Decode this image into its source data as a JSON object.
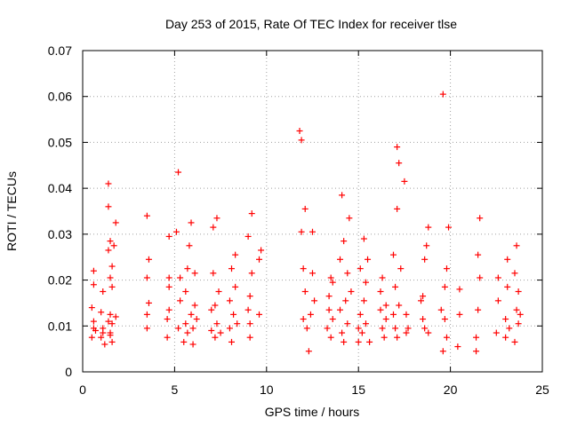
{
  "chart_data": {
    "type": "scatter",
    "title": "Day 253 of 2015, Rate Of TEC Index for receiver tlse",
    "xlabel": "GPS time / hours",
    "ylabel": "ROTI / TECUs",
    "xlim": [
      0,
      25
    ],
    "ylim": [
      0,
      0.07
    ],
    "x_ticks": [
      0,
      5,
      10,
      15,
      20,
      25
    ],
    "y_ticks": [
      0,
      0.01,
      0.02,
      0.03,
      0.04,
      0.05,
      0.06,
      0.07
    ],
    "x_tick_labels": [
      "0",
      "5",
      "10",
      "15",
      "20",
      "25"
    ],
    "y_tick_labels": [
      "0",
      "0.01",
      "0.02",
      "0.03",
      "0.04",
      "0.05",
      "0.06",
      "0.07"
    ],
    "grid": true,
    "marker": "+",
    "color": "#ff0000",
    "series": [
      {
        "name": "ROTI",
        "x": [
          0.5,
          0.5,
          0.6,
          0.6,
          0.6,
          0.6,
          0.7,
          1.0,
          1.0,
          1.1,
          1.1,
          1.1,
          1.2,
          1.4,
          1.4,
          1.4,
          1.4,
          1.5,
          1.5,
          1.5,
          1.5,
          1.5,
          1.6,
          1.6,
          1.6,
          1.6,
          1.7,
          1.8,
          1.8,
          3.5,
          3.5,
          3.5,
          3.5,
          3.6,
          3.6,
          4.6,
          4.6,
          4.7,
          4.7,
          4.7,
          4.7,
          5.1,
          5.2,
          5.2,
          5.3,
          5.3,
          5.5,
          5.6,
          5.6,
          5.7,
          5.7,
          5.8,
          5.9,
          5.9,
          6.0,
          6.0,
          6.1,
          6.1,
          6.2,
          7.0,
          7.0,
          7.1,
          7.1,
          7.2,
          7.2,
          7.3,
          7.3,
          7.4,
          7.5,
          8.0,
          8.0,
          8.1,
          8.1,
          8.2,
          8.3,
          8.3,
          8.4,
          9.0,
          9.0,
          9.1,
          9.1,
          9.1,
          9.2,
          9.2,
          9.6,
          9.6,
          9.7,
          11.8,
          11.9,
          11.9,
          12.0,
          12.0,
          12.1,
          12.1,
          12.2,
          12.3,
          12.4,
          12.5,
          12.5,
          12.6,
          13.3,
          13.4,
          13.4,
          13.5,
          13.5,
          13.6,
          13.6,
          14.0,
          14.0,
          14.1,
          14.1,
          14.2,
          14.2,
          14.3,
          14.4,
          14.4,
          14.5,
          14.6,
          15.0,
          15.0,
          15.1,
          15.1,
          15.2,
          15.3,
          15.3,
          15.4,
          15.4,
          15.5,
          15.6,
          16.2,
          16.2,
          16.3,
          16.3,
          16.4,
          16.5,
          16.5,
          16.9,
          16.9,
          17.0,
          17.0,
          17.1,
          17.1,
          17.1,
          17.2,
          17.2,
          17.3,
          17.5,
          17.6,
          17.6,
          17.7,
          18.4,
          18.5,
          18.5,
          18.6,
          18.6,
          18.7,
          18.8,
          18.8,
          19.5,
          19.6,
          19.6,
          19.7,
          19.7,
          19.8,
          19.8,
          19.9,
          20.4,
          20.5,
          20.5,
          21.4,
          21.4,
          21.5,
          21.5,
          21.6,
          21.6,
          22.5,
          22.6,
          22.6,
          23.0,
          23.0,
          23.1,
          23.1,
          23.2,
          23.5,
          23.5,
          23.6,
          23.6,
          23.7,
          23.7,
          23.8
        ],
        "y": [
          0.0075,
          0.014,
          0.011,
          0.019,
          0.022,
          0.0095,
          0.009,
          0.0075,
          0.013,
          0.0085,
          0.0095,
          0.0175,
          0.006,
          0.011,
          0.0265,
          0.036,
          0.041,
          0.0085,
          0.0125,
          0.0205,
          0.0285,
          0.008,
          0.0065,
          0.0105,
          0.0185,
          0.023,
          0.0275,
          0.012,
          0.0325,
          0.0095,
          0.0125,
          0.0205,
          0.034,
          0.015,
          0.0245,
          0.0075,
          0.0115,
          0.0185,
          0.0295,
          0.0135,
          0.0205,
          0.0305,
          0.0435,
          0.0095,
          0.0155,
          0.0205,
          0.0065,
          0.0105,
          0.0175,
          0.0085,
          0.0225,
          0.0275,
          0.0325,
          0.0125,
          0.006,
          0.0095,
          0.0145,
          0.0215,
          0.0115,
          0.009,
          0.0135,
          0.0215,
          0.0315,
          0.0075,
          0.0145,
          0.0335,
          0.0105,
          0.0175,
          0.0085,
          0.0095,
          0.0155,
          0.0225,
          0.0065,
          0.0125,
          0.0185,
          0.0255,
          0.0105,
          0.0135,
          0.0295,
          0.0075,
          0.0105,
          0.0165,
          0.0215,
          0.0345,
          0.0125,
          0.0245,
          0.0265,
          0.0525,
          0.0505,
          0.0305,
          0.0115,
          0.0225,
          0.0175,
          0.0355,
          0.0095,
          0.0045,
          0.0125,
          0.0215,
          0.0305,
          0.0155,
          0.0095,
          0.0165,
          0.0135,
          0.0205,
          0.0075,
          0.0115,
          0.0195,
          0.0135,
          0.0245,
          0.0085,
          0.0385,
          0.0065,
          0.0285,
          0.0155,
          0.0105,
          0.0215,
          0.0335,
          0.0175,
          0.0095,
          0.0065,
          0.0125,
          0.0225,
          0.0085,
          0.0155,
          0.029,
          0.0195,
          0.0105,
          0.0245,
          0.0065,
          0.0135,
          0.0175,
          0.0095,
          0.0205,
          0.0075,
          0.0145,
          0.0115,
          0.0125,
          0.0255,
          0.0185,
          0.0095,
          0.0355,
          0.049,
          0.0075,
          0.0145,
          0.0455,
          0.0225,
          0.0415,
          0.0125,
          0.0085,
          0.0095,
          0.0155,
          0.0115,
          0.0165,
          0.0095,
          0.0245,
          0.0275,
          0.0315,
          0.0085,
          0.0135,
          0.0605,
          0.0045,
          0.0115,
          0.0185,
          0.0075,
          0.0225,
          0.0315,
          0.0055,
          0.0125,
          0.018,
          0.0045,
          0.0075,
          0.0135,
          0.0255,
          0.0205,
          0.0335,
          0.0085,
          0.0155,
          0.0205,
          0.0075,
          0.0115,
          0.0185,
          0.0245,
          0.0095,
          0.0065,
          0.0215,
          0.0135,
          0.0275,
          0.0105,
          0.0175,
          0.0125
        ]
      }
    ]
  }
}
